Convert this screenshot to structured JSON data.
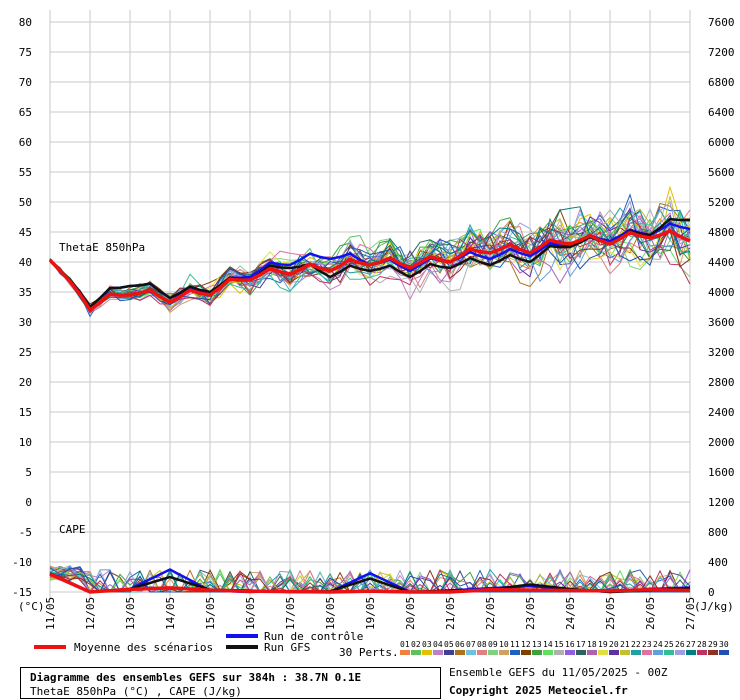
{
  "chart_data": {
    "type": "line",
    "title": "Diagramme des ensembles GEFS sur 384h : 38.7N 0.1E",
    "subtitle": "ThetaE 850hPa (°C) , CAPE (J/kg)",
    "left_axis": {
      "unit_label": "(°C)",
      "ylim": [
        -15,
        80
      ],
      "ticks": [
        80,
        75,
        70,
        65,
        60,
        55,
        50,
        45,
        40,
        35,
        30,
        25,
        20,
        15,
        10,
        5,
        0,
        -5,
        -10,
        -15
      ]
    },
    "right_axis": {
      "unit_label": "(J/kg)",
      "ylim": [
        0,
        7600
      ],
      "ticks": [
        7600,
        7200,
        6800,
        6400,
        6000,
        5600,
        5200,
        4800,
        4400,
        4000,
        3600,
        3200,
        2800,
        2400,
        2000,
        1600,
        1200,
        800,
        400,
        0
      ]
    },
    "x_dates": [
      "11/05",
      "12/05",
      "13/05",
      "14/05",
      "15/05",
      "16/05",
      "17/05",
      "18/05",
      "19/05",
      "20/05",
      "21/05",
      "22/05",
      "23/05",
      "24/05",
      "25/05",
      "26/05",
      "27/05"
    ],
    "grid": true,
    "panel_labels": {
      "thetae": "ThetaE 850hPa",
      "cape": "CAPE"
    },
    "series": [
      {
        "name": "Moyenne des scénarios",
        "color": "#ee1111",
        "thetae_daily": [
          40.5,
          32.5,
          35,
          33.8,
          35,
          37.5,
          38.5,
          39,
          40,
          39.5,
          40.5,
          42,
          42,
          43.5,
          43.5,
          44.5,
          44
        ],
        "cape_daily": [
          240,
          0,
          35,
          55,
          25,
          10,
          5,
          0,
          10,
          0,
          0,
          30,
          25,
          20,
          15,
          30,
          20
        ]
      },
      {
        "name": "Run de contrôle",
        "color": "#1111ee",
        "thetae_daily": [
          40.5,
          33,
          36.5,
          34.5,
          35,
          38,
          40,
          41,
          40,
          39,
          40.5,
          41,
          41.5,
          43,
          44,
          45,
          46
        ],
        "cape_daily": [
          250,
          0,
          40,
          300,
          20,
          0,
          10,
          0,
          250,
          0,
          20,
          50,
          80,
          30,
          0,
          40,
          60
        ]
      },
      {
        "name": "Run GFS",
        "color": "#111111",
        "thetae_daily": [
          40.5,
          33,
          36.5,
          34.5,
          35.5,
          37.5,
          39.5,
          38,
          39,
          38,
          39.5,
          40,
          40.5,
          43,
          43.5,
          45,
          47.5
        ],
        "cape_daily": [
          250,
          0,
          40,
          200,
          30,
          20,
          0,
          10,
          180,
          0,
          20,
          30,
          100,
          40,
          0,
          20,
          50
        ]
      }
    ],
    "perturbation_count": 30
  },
  "legend": {
    "mean_label": "Moyenne des scénarios",
    "control_label": "Run de contrôle",
    "gfs_label": "Run GFS",
    "perts_label": "30 Perts.",
    "pert_numbers": [
      "01",
      "02",
      "03",
      "04",
      "05",
      "06",
      "07",
      "08",
      "09",
      "10",
      "11",
      "12",
      "13",
      "14",
      "15",
      "16",
      "17",
      "18",
      "19",
      "20",
      "21",
      "22",
      "23",
      "24",
      "25",
      "26",
      "27",
      "28",
      "29",
      "30"
    ],
    "pert_colors": [
      "#f08040",
      "#60c060",
      "#e0c000",
      "#c080c0",
      "#404090",
      "#b07020",
      "#70c0e0",
      "#e08080",
      "#80d080",
      "#d0a060",
      "#2060c0",
      "#804000",
      "#40a040",
      "#60e060",
      "#b0b0b0",
      "#9060e0",
      "#306060",
      "#b060b0",
      "#e0e040",
      "#6030a0",
      "#c0c030",
      "#20a0a0",
      "#e070a0",
      "#60a0e0",
      "#30c090",
      "#a0a0e0",
      "#008080",
      "#c03060",
      "#903020",
      "#2050b0"
    ]
  },
  "info": {
    "title": "Diagramme des ensembles GEFS sur 384h : 38.7N 0.1E",
    "subtitle": "ThetaE 850hPa (°C) , CAPE (J/kg)",
    "ensemble": "Ensemble GEFS du 11/05/2025 - 00Z",
    "copyright": "Copyright 2025 Meteociel.fr"
  }
}
